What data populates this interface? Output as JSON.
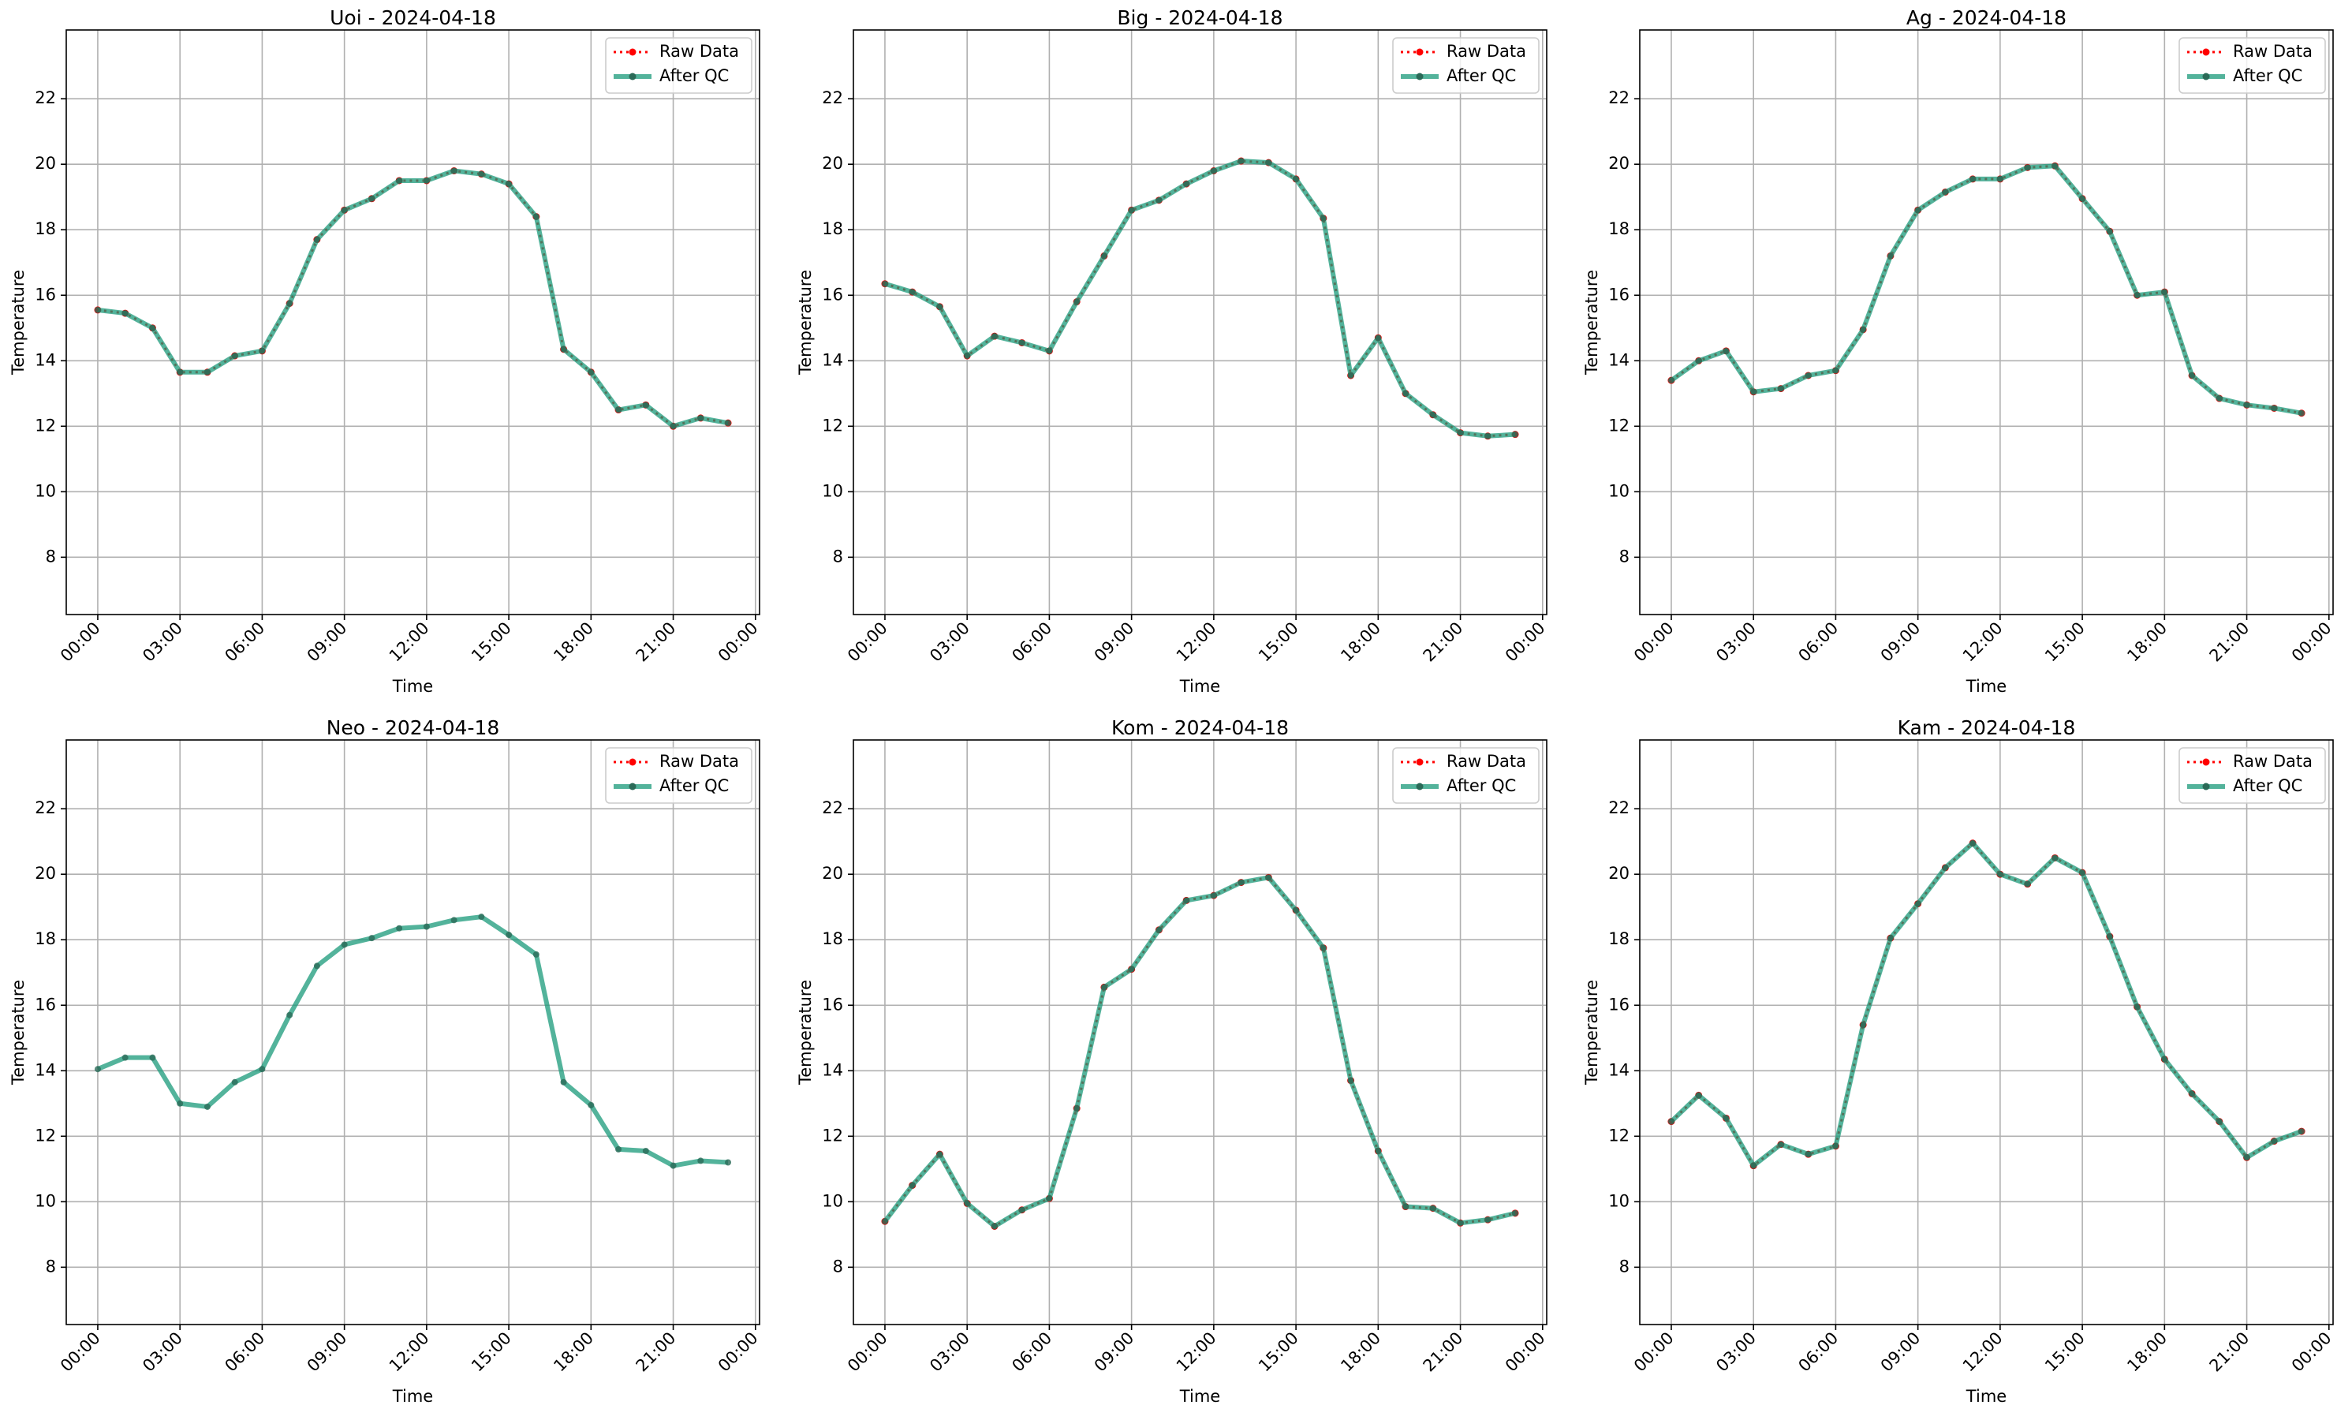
{
  "chart_data": [
    {
      "type": "line",
      "title": "Uoi - 2024-04-18",
      "xlabel": "Time",
      "ylabel": "Temperature",
      "x": [
        0,
        1,
        2,
        3,
        4,
        5,
        6,
        7,
        8,
        9,
        10,
        11,
        12,
        13,
        14,
        15,
        16,
        17,
        18,
        19,
        20,
        21,
        22,
        23
      ],
      "xlim": [
        -1.15,
        24.15
      ],
      "xticks": [
        {
          "value": 0,
          "label": "00:00"
        },
        {
          "value": 3,
          "label": "03:00"
        },
        {
          "value": 6,
          "label": "06:00"
        },
        {
          "value": 9,
          "label": "09:00"
        },
        {
          "value": 12,
          "label": "12:00"
        },
        {
          "value": 15,
          "label": "15:00"
        },
        {
          "value": 18,
          "label": "18:00"
        },
        {
          "value": 21,
          "label": "21:00"
        },
        {
          "value": 24,
          "label": "00:00"
        }
      ],
      "ylim": [
        6.25,
        24.1
      ],
      "yticks": [
        8,
        10,
        12,
        14,
        16,
        18,
        20,
        22
      ],
      "grid": true,
      "legend": "upper right",
      "series": [
        {
          "name": "Raw Data",
          "color": "#ff0000",
          "values": [
            15.55,
            15.45,
            15.0,
            13.65,
            13.65,
            14.15,
            14.3,
            15.75,
            17.7,
            18.6,
            18.95,
            19.5,
            19.5,
            19.8,
            19.7,
            19.4,
            18.4,
            14.35,
            13.65,
            12.5,
            12.65,
            12.0,
            12.25,
            12.1
          ]
        },
        {
          "name": "After QC",
          "color": "#1a9a7a",
          "values": [
            15.55,
            15.45,
            15.0,
            13.65,
            13.65,
            14.15,
            14.3,
            15.75,
            17.7,
            18.6,
            18.95,
            19.5,
            19.5,
            19.8,
            19.7,
            19.4,
            18.4,
            14.35,
            13.65,
            12.5,
            12.65,
            12.0,
            12.25,
            12.1
          ]
        }
      ]
    },
    {
      "type": "line",
      "title": "Big - 2024-04-18",
      "xlabel": "Time",
      "ylabel": "Temperature",
      "x": [
        0,
        1,
        2,
        3,
        4,
        5,
        6,
        7,
        8,
        9,
        10,
        11,
        12,
        13,
        14,
        15,
        16,
        17,
        18,
        19,
        20,
        21,
        22,
        23
      ],
      "xlim": [
        -1.15,
        24.15
      ],
      "xticks": [
        {
          "value": 0,
          "label": "00:00"
        },
        {
          "value": 3,
          "label": "03:00"
        },
        {
          "value": 6,
          "label": "06:00"
        },
        {
          "value": 9,
          "label": "09:00"
        },
        {
          "value": 12,
          "label": "12:00"
        },
        {
          "value": 15,
          "label": "15:00"
        },
        {
          "value": 18,
          "label": "18:00"
        },
        {
          "value": 21,
          "label": "21:00"
        },
        {
          "value": 24,
          "label": "00:00"
        }
      ],
      "ylim": [
        6.25,
        24.1
      ],
      "yticks": [
        8,
        10,
        12,
        14,
        16,
        18,
        20,
        22
      ],
      "grid": true,
      "legend": "upper right",
      "series": [
        {
          "name": "Raw Data",
          "color": "#ff0000",
          "values": [
            16.35,
            16.1,
            15.65,
            14.15,
            14.75,
            14.55,
            14.3,
            15.8,
            17.2,
            18.6,
            18.9,
            19.4,
            19.8,
            20.1,
            20.05,
            19.55,
            18.35,
            13.55,
            14.7,
            13.0,
            12.35,
            11.8,
            11.7,
            11.75
          ]
        },
        {
          "name": "After QC",
          "color": "#1a9a7a",
          "values": [
            16.35,
            16.1,
            15.65,
            14.15,
            14.75,
            14.55,
            14.3,
            15.8,
            17.2,
            18.6,
            18.9,
            19.4,
            19.8,
            20.1,
            20.05,
            19.55,
            18.35,
            13.55,
            14.7,
            13.0,
            12.35,
            11.8,
            11.7,
            11.75
          ]
        }
      ]
    },
    {
      "type": "line",
      "title": "Ag - 2024-04-18",
      "xlabel": "Time",
      "ylabel": "Temperature",
      "x": [
        0,
        1,
        2,
        3,
        4,
        5,
        6,
        7,
        8,
        9,
        10,
        11,
        12,
        13,
        14,
        15,
        16,
        17,
        18,
        19,
        20,
        21,
        22,
        23
      ],
      "xlim": [
        -1.15,
        24.15
      ],
      "xticks": [
        {
          "value": 0,
          "label": "00:00"
        },
        {
          "value": 3,
          "label": "03:00"
        },
        {
          "value": 6,
          "label": "06:00"
        },
        {
          "value": 9,
          "label": "09:00"
        },
        {
          "value": 12,
          "label": "12:00"
        },
        {
          "value": 15,
          "label": "15:00"
        },
        {
          "value": 18,
          "label": "18:00"
        },
        {
          "value": 21,
          "label": "21:00"
        },
        {
          "value": 24,
          "label": "00:00"
        }
      ],
      "ylim": [
        6.25,
        24.1
      ],
      "yticks": [
        8,
        10,
        12,
        14,
        16,
        18,
        20,
        22
      ],
      "grid": true,
      "legend": "upper right",
      "series": [
        {
          "name": "Raw Data",
          "color": "#ff0000",
          "values": [
            13.4,
            14.0,
            14.3,
            13.05,
            13.15,
            13.55,
            13.7,
            14.95,
            17.2,
            18.6,
            19.15,
            19.55,
            19.55,
            19.9,
            19.95,
            18.95,
            17.95,
            16.0,
            16.1,
            13.55,
            12.85,
            12.65,
            12.55,
            12.4
          ]
        },
        {
          "name": "After QC",
          "color": "#1a9a7a",
          "values": [
            13.4,
            14.0,
            14.3,
            13.05,
            13.15,
            13.55,
            13.7,
            14.95,
            17.2,
            18.6,
            19.15,
            19.55,
            19.55,
            19.9,
            19.95,
            18.95,
            17.95,
            16.0,
            16.1,
            13.55,
            12.85,
            12.65,
            12.55,
            12.4
          ]
        }
      ]
    },
    {
      "type": "line",
      "title": "Neo - 2024-04-18",
      "xlabel": "Time",
      "ylabel": "Temperature",
      "x": [
        0,
        1,
        2,
        3,
        4,
        5,
        6,
        7,
        8,
        9,
        10,
        11,
        12,
        13,
        14,
        15,
        16,
        17,
        18,
        19,
        20,
        21,
        22,
        23
      ],
      "xlim": [
        -1.15,
        24.15
      ],
      "xticks": [
        {
          "value": 0,
          "label": "00:00"
        },
        {
          "value": 3,
          "label": "03:00"
        },
        {
          "value": 6,
          "label": "06:00"
        },
        {
          "value": 9,
          "label": "09:00"
        },
        {
          "value": 12,
          "label": "12:00"
        },
        {
          "value": 15,
          "label": "15:00"
        },
        {
          "value": 18,
          "label": "18:00"
        },
        {
          "value": 21,
          "label": "21:00"
        },
        {
          "value": 24,
          "label": "00:00"
        }
      ],
      "ylim": [
        6.25,
        24.1
      ],
      "yticks": [
        8,
        10,
        12,
        14,
        16,
        18,
        20,
        22
      ],
      "grid": true,
      "legend": "upper right",
      "series": [
        {
          "name": "Raw Data",
          "color": "#ff0000",
          "values": [
            null,
            null,
            null,
            null,
            null,
            null,
            null,
            null,
            null,
            null,
            null,
            null,
            null,
            null,
            null,
            null,
            null,
            null,
            null,
            null,
            null,
            null,
            null,
            null
          ]
        },
        {
          "name": "After QC",
          "color": "#1a9a7a",
          "values": [
            14.05,
            14.4,
            14.4,
            13.0,
            12.9,
            13.65,
            14.05,
            15.7,
            17.2,
            17.85,
            18.05,
            18.35,
            18.4,
            18.6,
            18.7,
            18.15,
            17.55,
            13.65,
            12.95,
            11.6,
            11.55,
            11.1,
            11.25,
            11.2
          ]
        }
      ]
    },
    {
      "type": "line",
      "title": "Kom - 2024-04-18",
      "xlabel": "Time",
      "ylabel": "Temperature",
      "x": [
        0,
        1,
        2,
        3,
        4,
        5,
        6,
        7,
        8,
        9,
        10,
        11,
        12,
        13,
        14,
        15,
        16,
        17,
        18,
        19,
        20,
        21,
        22,
        23
      ],
      "xlim": [
        -1.15,
        24.15
      ],
      "xticks": [
        {
          "value": 0,
          "label": "00:00"
        },
        {
          "value": 3,
          "label": "03:00"
        },
        {
          "value": 6,
          "label": "06:00"
        },
        {
          "value": 9,
          "label": "09:00"
        },
        {
          "value": 12,
          "label": "12:00"
        },
        {
          "value": 15,
          "label": "15:00"
        },
        {
          "value": 18,
          "label": "18:00"
        },
        {
          "value": 21,
          "label": "21:00"
        },
        {
          "value": 24,
          "label": "00:00"
        }
      ],
      "ylim": [
        6.25,
        24.1
      ],
      "yticks": [
        8,
        10,
        12,
        14,
        16,
        18,
        20,
        22
      ],
      "grid": true,
      "legend": "upper right",
      "series": [
        {
          "name": "Raw Data",
          "color": "#ff0000",
          "values": [
            9.4,
            10.5,
            11.45,
            9.95,
            9.25,
            9.75,
            10.1,
            12.85,
            16.55,
            17.1,
            18.3,
            19.2,
            19.35,
            19.75,
            19.9,
            18.9,
            17.75,
            13.7,
            11.55,
            9.85,
            9.8,
            9.35,
            9.45,
            9.65
          ]
        },
        {
          "name": "After QC",
          "color": "#1a9a7a",
          "values": [
            9.4,
            10.5,
            11.45,
            9.95,
            9.25,
            9.75,
            10.1,
            12.85,
            16.55,
            17.1,
            18.3,
            19.2,
            19.35,
            19.75,
            19.9,
            18.9,
            17.75,
            13.7,
            11.55,
            9.85,
            9.8,
            9.35,
            9.45,
            9.65
          ]
        }
      ]
    },
    {
      "type": "line",
      "title": "Kam - 2024-04-18",
      "xlabel": "Time",
      "ylabel": "Temperature",
      "x": [
        0,
        1,
        2,
        3,
        4,
        5,
        6,
        7,
        8,
        9,
        10,
        11,
        12,
        13,
        14,
        15,
        16,
        17,
        18,
        19,
        20,
        21,
        22,
        23
      ],
      "xlim": [
        -1.15,
        24.15
      ],
      "xticks": [
        {
          "value": 0,
          "label": "00:00"
        },
        {
          "value": 3,
          "label": "03:00"
        },
        {
          "value": 6,
          "label": "06:00"
        },
        {
          "value": 9,
          "label": "09:00"
        },
        {
          "value": 12,
          "label": "12:00"
        },
        {
          "value": 15,
          "label": "15:00"
        },
        {
          "value": 18,
          "label": "18:00"
        },
        {
          "value": 21,
          "label": "21:00"
        },
        {
          "value": 24,
          "label": "00:00"
        }
      ],
      "ylim": [
        6.25,
        24.1
      ],
      "yticks": [
        8,
        10,
        12,
        14,
        16,
        18,
        20,
        22
      ],
      "grid": true,
      "legend": "upper right",
      "series": [
        {
          "name": "Raw Data",
          "color": "#ff0000",
          "values": [
            12.45,
            13.25,
            12.55,
            11.1,
            11.75,
            11.45,
            11.7,
            15.4,
            18.05,
            19.1,
            20.2,
            20.95,
            20.0,
            19.7,
            20.5,
            20.05,
            18.1,
            15.95,
            14.35,
            13.3,
            12.45,
            11.35,
            11.85,
            12.15
          ]
        },
        {
          "name": "After QC",
          "color": "#1a9a7a",
          "values": [
            12.45,
            13.25,
            12.55,
            11.1,
            11.75,
            11.45,
            11.7,
            15.4,
            18.05,
            19.1,
            20.2,
            20.95,
            20.0,
            19.7,
            20.5,
            20.05,
            18.1,
            15.95,
            14.35,
            13.3,
            12.45,
            11.35,
            11.85,
            12.15
          ]
        }
      ]
    }
  ]
}
